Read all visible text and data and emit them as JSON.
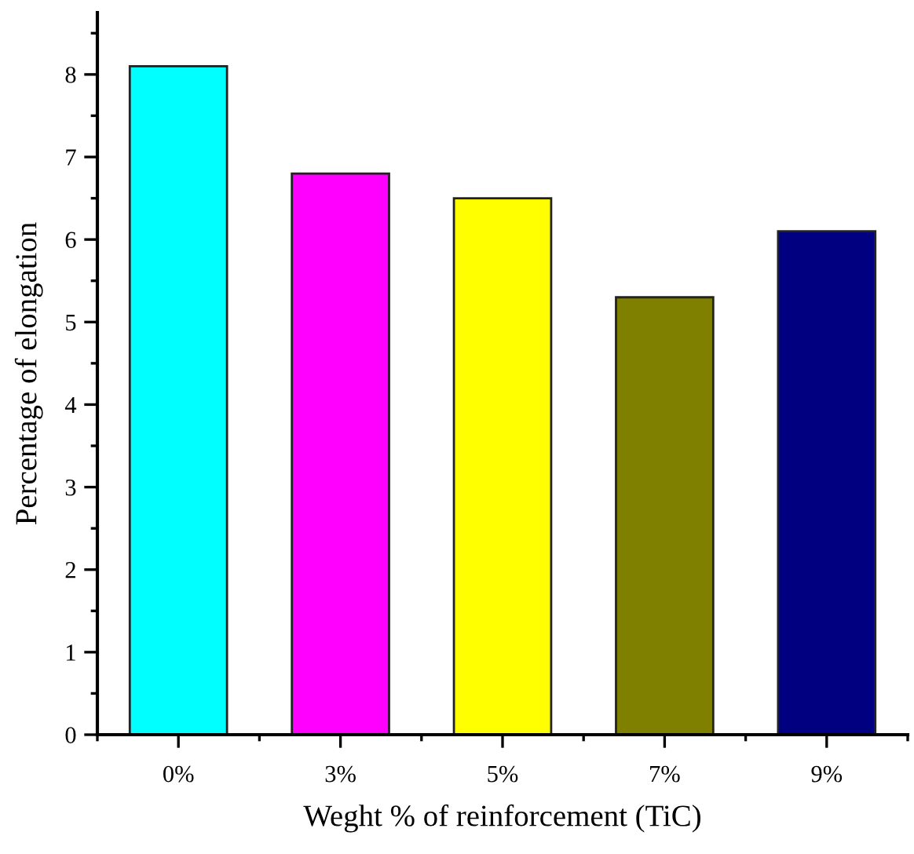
{
  "chart_data": {
    "type": "bar",
    "xlabel": "Weght % of reinforcement (TiC)",
    "ylabel": "Percentage of elongation",
    "categories": [
      "0%",
      "3%",
      "5%",
      "7%",
      "9%"
    ],
    "values": [
      8.1,
      6.8,
      6.5,
      5.3,
      6.1
    ],
    "colors": [
      "#00ffff",
      "#ff00ff",
      "#ffff00",
      "#808000",
      "#000080"
    ],
    "ylim": [
      0,
      8.75
    ],
    "yticks": [
      0,
      1,
      2,
      3,
      4,
      5,
      6,
      7,
      8
    ],
    "grid": false,
    "legend": false
  }
}
